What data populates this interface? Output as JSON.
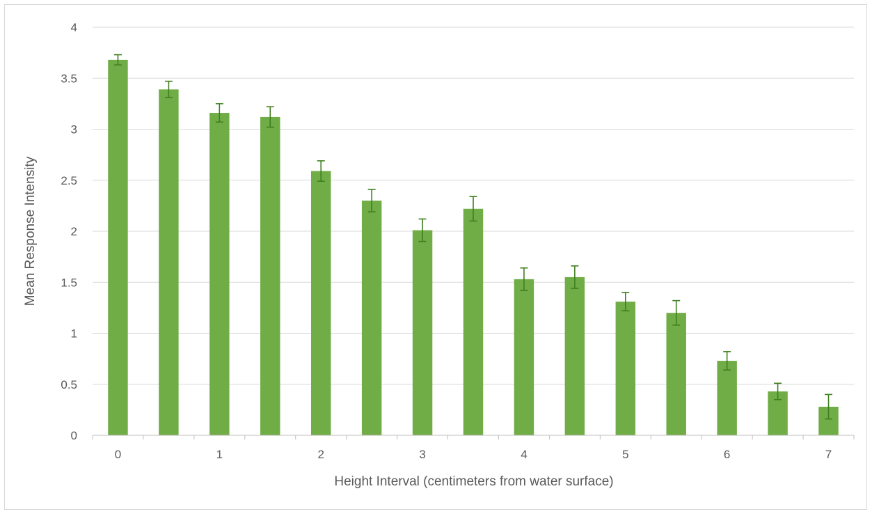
{
  "chart_data": {
    "type": "bar",
    "title": "",
    "xlabel": "Height Interval (centimeters from water surface)",
    "ylabel": "Mean Response Intensity",
    "x": [
      0,
      0.5,
      1,
      1.5,
      2,
      2.5,
      3,
      3.5,
      4,
      4.5,
      5,
      5.5,
      6,
      6.5,
      7
    ],
    "x_tick_labels": [
      "0",
      "",
      "1",
      "",
      "2",
      "",
      "3",
      "",
      "4",
      "",
      "5",
      "",
      "6",
      "",
      "7"
    ],
    "values": [
      3.68,
      3.39,
      3.16,
      3.12,
      2.59,
      2.3,
      2.01,
      2.22,
      1.53,
      1.55,
      1.31,
      1.2,
      0.73,
      0.43,
      0.28
    ],
    "error": [
      0.05,
      0.08,
      0.09,
      0.1,
      0.1,
      0.11,
      0.11,
      0.12,
      0.11,
      0.11,
      0.09,
      0.12,
      0.09,
      0.08,
      0.12
    ],
    "ylim": [
      0,
      4
    ],
    "y_ticks": [
      "0",
      "0.5",
      "1",
      "1.5",
      "2",
      "2.5",
      "3",
      "3.5",
      "4"
    ],
    "grid": true,
    "legend": "none",
    "colors": {
      "bar": "#70ad47",
      "error_bar": "#3f7f1f",
      "grid": "#d9d9d9",
      "axis": "#bfbfbf",
      "text": "#595959"
    }
  }
}
